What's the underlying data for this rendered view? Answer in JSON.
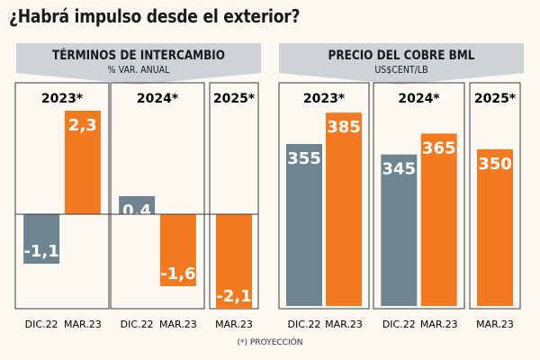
{
  "title": "¿Habrá impulso desde el exterior?",
  "footnote": "(*) PROYECCIÓN",
  "colors": {
    "gray": "#6e8591",
    "orange": "#f47a22",
    "banner": "#cdd3d6"
  },
  "chart_data": [
    {
      "type": "bar",
      "title": "TÉRMINOS DE INTERCAMBIO",
      "subtitle": "% VAR. ANUAL",
      "groups": [
        {
          "year": "2023*",
          "bars": [
            {
              "category": "DIC.22",
              "value": -1.1,
              "label": "-1,1",
              "color": "gray"
            },
            {
              "category": "MAR.23",
              "value": 2.3,
              "label": "2,3",
              "color": "orange"
            }
          ]
        },
        {
          "year": "2024*",
          "bars": [
            {
              "category": "DIC.22",
              "value": 0.4,
              "label": "0,4",
              "color": "gray"
            },
            {
              "category": "MAR.23",
              "value": -1.6,
              "label": "-1,6",
              "color": "orange"
            }
          ]
        },
        {
          "year": "2025*",
          "bars": [
            {
              "category": "MAR.23",
              "value": -2.1,
              "label": "-2,1",
              "color": "orange"
            }
          ]
        }
      ]
    },
    {
      "type": "bar",
      "title": "PRECIO DEL COBRE BML",
      "subtitle": "US$CENT/LB",
      "groups": [
        {
          "year": "2023*",
          "bars": [
            {
              "category": "DIC.22",
              "value": 355,
              "label": "355",
              "color": "gray"
            },
            {
              "category": "MAR.23",
              "value": 385,
              "label": "385",
              "color": "orange"
            }
          ]
        },
        {
          "year": "2024*",
          "bars": [
            {
              "category": "DIC.22",
              "value": 345,
              "label": "345",
              "color": "gray"
            },
            {
              "category": "MAR.23",
              "value": 365,
              "label": "365",
              "color": "orange"
            }
          ]
        },
        {
          "year": "2025*",
          "bars": [
            {
              "category": "MAR.23",
              "value": 350,
              "label": "350",
              "color": "orange"
            }
          ]
        }
      ]
    }
  ]
}
